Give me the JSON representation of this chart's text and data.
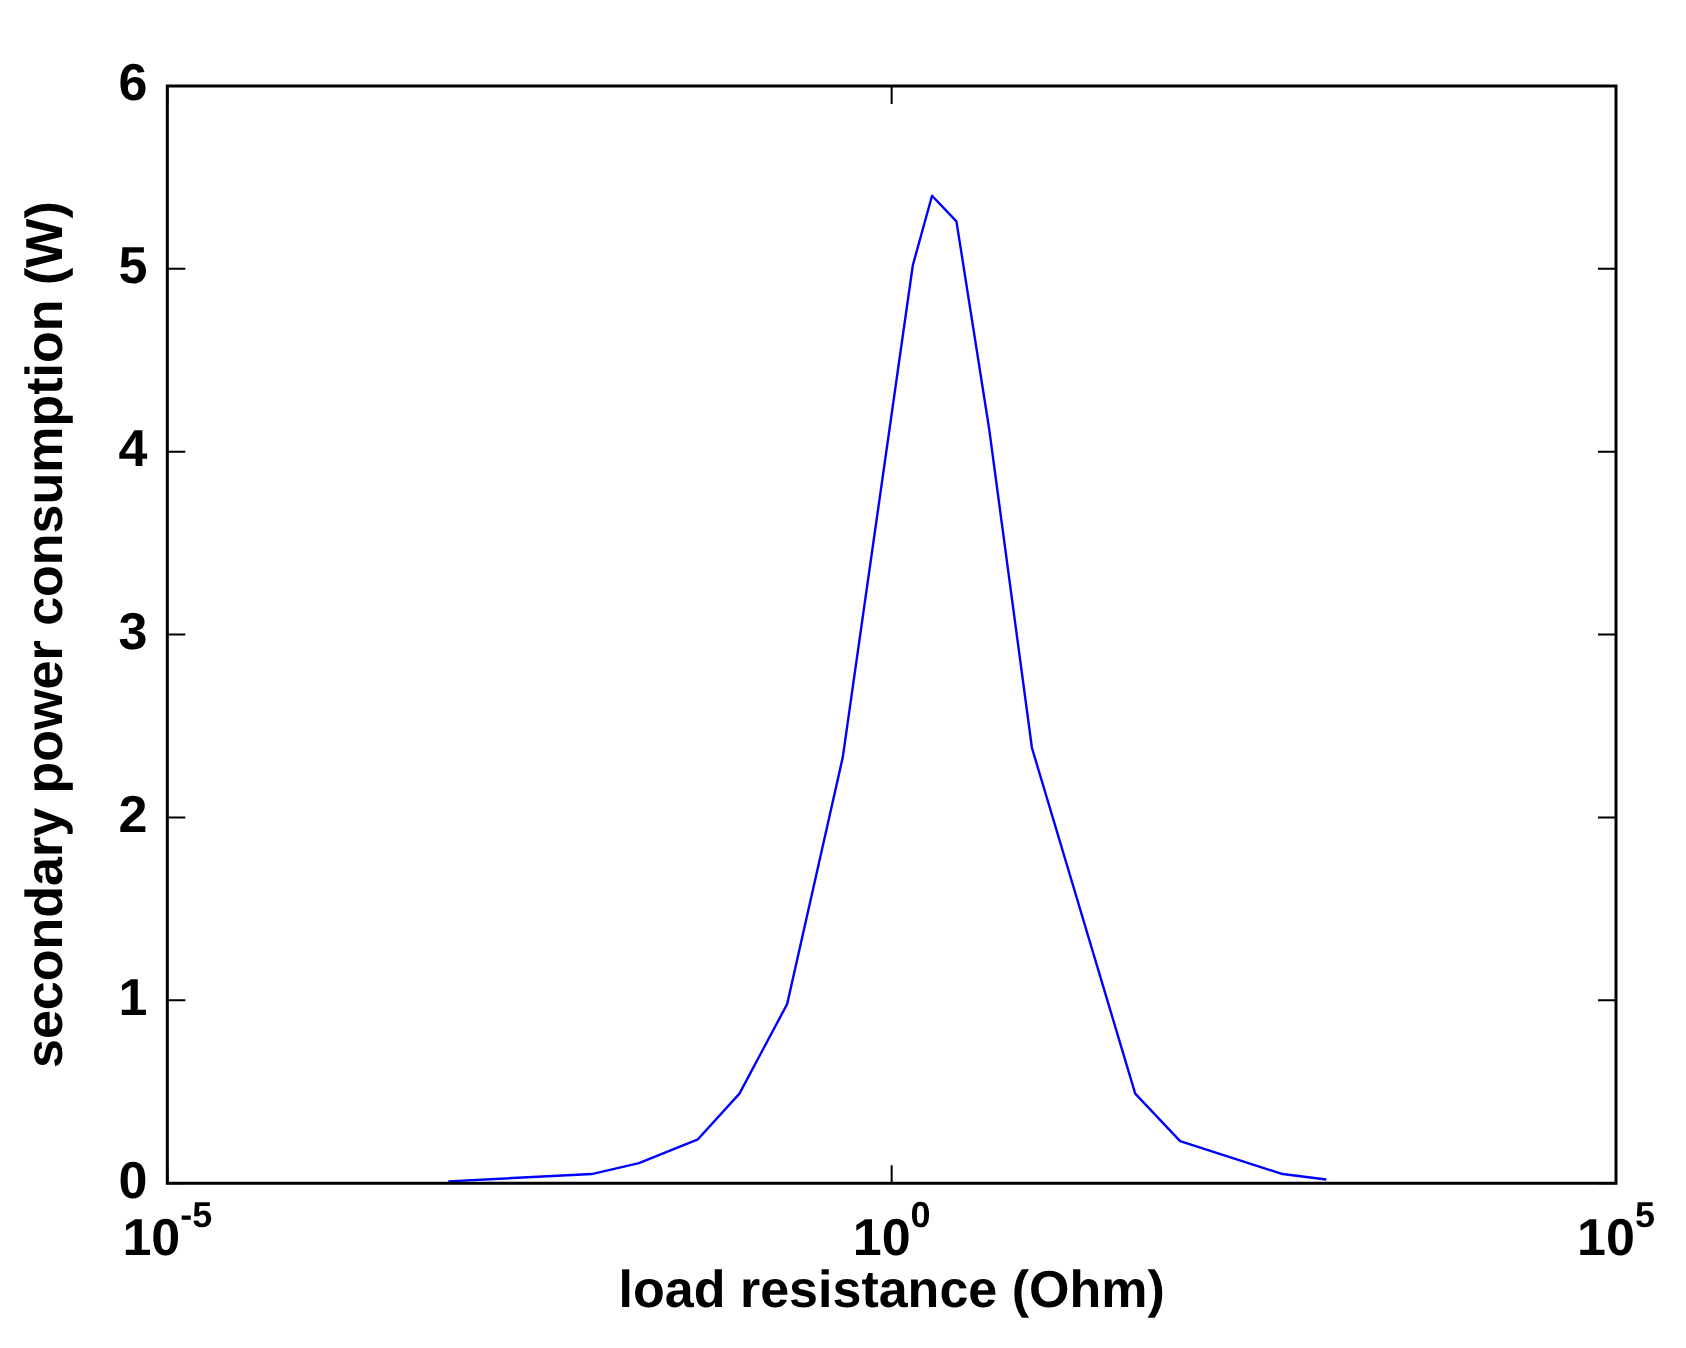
{
  "chart_data": {
    "type": "line",
    "xlabel": "load resistance (Ohm)",
    "ylabel": "secondary power consumption (W)",
    "x": [
      0.00087,
      0.0085,
      0.018,
      0.046,
      0.089,
      0.19,
      0.46,
      1.4,
      1.9,
      2.8,
      4.7,
      9.3,
      48,
      98,
      500,
      1000
    ],
    "series": [
      {
        "color": "#0000ff",
        "values": [
          0.01,
          0.05,
          0.11,
          0.24,
          0.49,
          0.98,
          2.33,
          5.02,
          5.4,
          5.26,
          4.13,
          2.38,
          0.49,
          0.23,
          0.05,
          0.02
        ]
      }
    ],
    "log": "x",
    "xlim": [
      1e-05,
      100000
    ],
    "xticks": [
      {
        "value": 1e-05,
        "label": "10$^{-5}$"
      },
      {
        "value": 1,
        "label": "10$^{0}$"
      },
      {
        "value": 100000,
        "label": "10$^{5}$"
      }
    ],
    "ylim": [
      0,
      6
    ],
    "yticks": [
      0,
      1,
      2,
      3,
      4,
      5,
      6
    ],
    "grid": false,
    "legend": false,
    "marker": "none",
    "line_style": "solid"
  }
}
